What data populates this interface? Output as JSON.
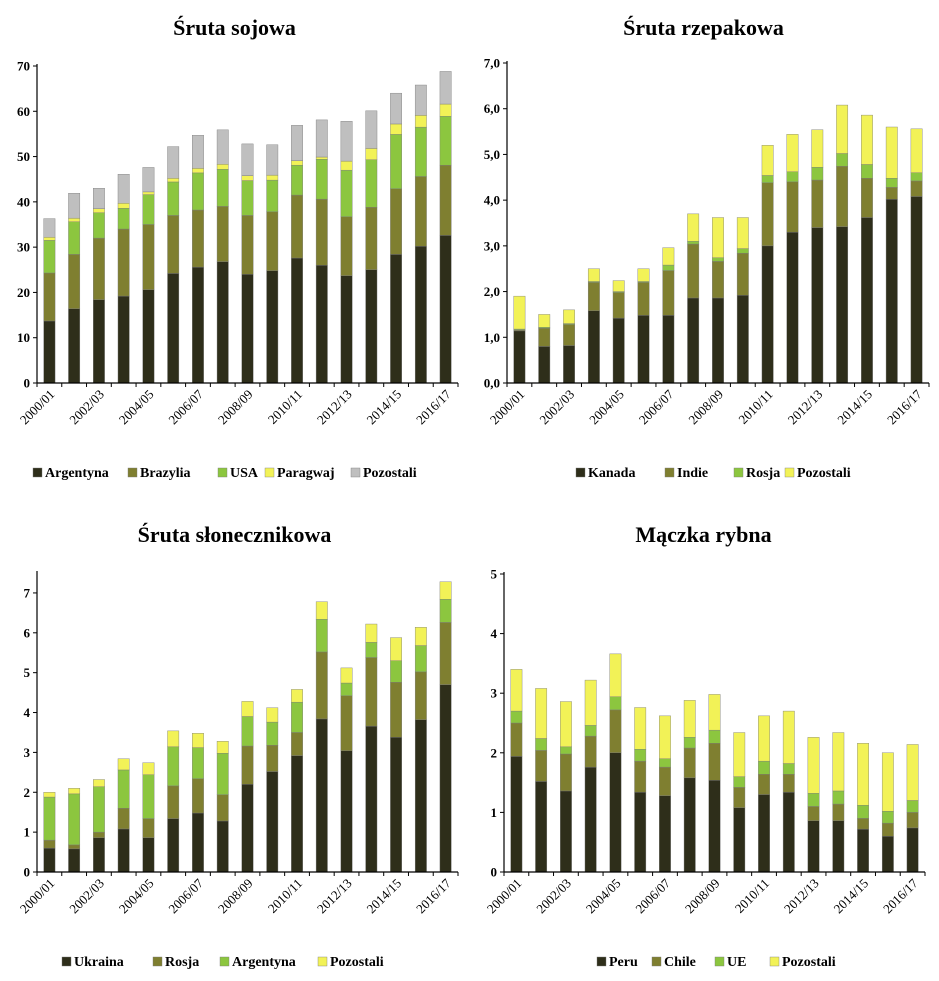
{
  "colors": {
    "c1": "#2e2e1a",
    "c2": "#7f7f30",
    "c3": "#8cc63f",
    "c4": "#f2f257",
    "c5": "#bfbfbf"
  },
  "chart_data": [
    {
      "type": "bar",
      "stacked": true,
      "title": "Śruta sojowa",
      "ylim": [
        0,
        70
      ],
      "yticks": [
        0,
        10,
        20,
        30,
        40,
        50,
        60,
        70
      ],
      "ytick_labels": [
        "0",
        "10",
        "20",
        "30",
        "40",
        "50",
        "60",
        "70"
      ],
      "categories": [
        "2000/01",
        "2001/02",
        "2002/03",
        "2003/04",
        "2004/05",
        "2005/06",
        "2006/07",
        "2007/08",
        "2008/09",
        "2009/10",
        "2010/11",
        "2011/12",
        "2012/13",
        "2013/14",
        "2014/15",
        "2015/16",
        "2016/17"
      ],
      "xtick_labels": [
        "2000/01",
        "2002/03",
        "2004/05",
        "2006/07",
        "2008/09",
        "2010/11",
        "2012/13",
        "2014/15",
        "2016/17"
      ],
      "legend_position": "bottom",
      "series": [
        {
          "name": "Argentyna",
          "color_key": "c1",
          "values": [
            13.7,
            16.4,
            18.4,
            19.2,
            20.6,
            24.2,
            25.6,
            26.8,
            24.0,
            24.8,
            27.6,
            26.0,
            23.7,
            25.0,
            28.4,
            30.2,
            32.6
          ]
        },
        {
          "name": "Brazylia",
          "color_key": "c2",
          "values": [
            10.6,
            12.0,
            13.6,
            14.8,
            14.4,
            12.8,
            12.6,
            12.2,
            13.0,
            13.0,
            13.9,
            14.6,
            13.0,
            13.8,
            14.5,
            15.4,
            15.5
          ]
        },
        {
          "name": "USA",
          "color_key": "c3",
          "values": [
            7.2,
            7.2,
            5.6,
            4.6,
            6.6,
            7.4,
            8.2,
            8.2,
            7.7,
            7.0,
            6.6,
            8.8,
            10.3,
            10.5,
            12.0,
            10.9,
            10.8
          ]
        },
        {
          "name": "Paragwaj",
          "color_key": "c4",
          "values": [
            0.7,
            0.8,
            0.9,
            1.1,
            0.6,
            0.8,
            1.0,
            1.1,
            1.1,
            1.1,
            1.0,
            0.5,
            2.0,
            2.5,
            2.3,
            2.6,
            2.7
          ]
        },
        {
          "name": "Pozostali",
          "color_key": "c5",
          "values": [
            4.1,
            5.5,
            4.5,
            6.4,
            5.4,
            7.0,
            7.3,
            7.6,
            7.0,
            6.7,
            7.8,
            8.2,
            8.8,
            8.3,
            6.8,
            6.7,
            7.2
          ]
        }
      ]
    },
    {
      "type": "bar",
      "stacked": true,
      "title": "Śruta rzepakowa",
      "ylim": [
        0,
        7
      ],
      "yticks": [
        0,
        1,
        2,
        3,
        4,
        5,
        6,
        7
      ],
      "ytick_labels": [
        "0,0",
        "1,0",
        "2,0",
        "3,0",
        "4,0",
        "5,0",
        "6,0",
        "7,0"
      ],
      "categories": [
        "2000/01",
        "2001/02",
        "2002/03",
        "2003/04",
        "2004/05",
        "2005/06",
        "2006/07",
        "2007/08",
        "2008/09",
        "2009/10",
        "2010/11",
        "2011/12",
        "2012/13",
        "2013/14",
        "2014/15",
        "2015/16",
        "2016/17"
      ],
      "xtick_labels": [
        "2000/01",
        "2002/03",
        "2004/05",
        "2006/07",
        "2008/09",
        "2010/11",
        "2012/13",
        "2014/15",
        "2016/17"
      ],
      "legend_position": "bottom",
      "series": [
        {
          "name": "Kanada",
          "color_key": "c1",
          "values": [
            1.14,
            0.8,
            0.82,
            1.58,
            1.42,
            1.48,
            1.48,
            1.86,
            1.86,
            1.92,
            3.0,
            3.3,
            3.4,
            3.42,
            3.62,
            4.02,
            4.08
          ]
        },
        {
          "name": "Indie",
          "color_key": "c2",
          "values": [
            0.02,
            0.4,
            0.46,
            0.62,
            0.56,
            0.72,
            0.98,
            1.18,
            0.8,
            0.92,
            1.38,
            1.1,
            1.04,
            1.32,
            0.86,
            0.26,
            0.34
          ]
        },
        {
          "name": "Rosja",
          "color_key": "c3",
          "values": [
            0.02,
            0.02,
            0.02,
            0.02,
            0.02,
            0.02,
            0.12,
            0.06,
            0.08,
            0.1,
            0.16,
            0.22,
            0.28,
            0.28,
            0.3,
            0.2,
            0.18
          ]
        },
        {
          "name": "Pozostali",
          "color_key": "c4",
          "values": [
            0.72,
            0.28,
            0.3,
            0.28,
            0.24,
            0.28,
            0.38,
            0.6,
            0.88,
            0.68,
            0.66,
            0.82,
            0.82,
            1.06,
            1.08,
            1.12,
            0.96
          ]
        }
      ]
    },
    {
      "type": "bar",
      "stacked": true,
      "title": "Śruta słonecznikowa",
      "ylim": [
        0,
        7.5
      ],
      "yticks": [
        0,
        1,
        2,
        3,
        4,
        5,
        6,
        7
      ],
      "ytick_labels": [
        "0",
        "1",
        "2",
        "3",
        "4",
        "5",
        "6",
        "7"
      ],
      "categories": [
        "2000/01",
        "2001/02",
        "2002/03",
        "2003/04",
        "2004/05",
        "2005/06",
        "2006/07",
        "2007/08",
        "2008/09",
        "2009/10",
        "2010/11",
        "2011/12",
        "2012/13",
        "2013/14",
        "2014/15",
        "2015/16",
        "2016/17"
      ],
      "xtick_labels": [
        "2000/01",
        "2002/03",
        "2004/05",
        "2006/07",
        "2008/09",
        "2010/11",
        "2012/13",
        "2014/15",
        "2016/17"
      ],
      "legend_position": "bottom",
      "series": [
        {
          "name": "Ukraina",
          "color_key": "c1",
          "values": [
            0.6,
            0.58,
            0.86,
            1.08,
            0.86,
            1.34,
            1.48,
            1.28,
            2.2,
            2.52,
            2.92,
            3.84,
            3.04,
            3.66,
            3.38,
            3.82,
            4.7
          ]
        },
        {
          "name": "Rosja",
          "color_key": "c2",
          "values": [
            0.2,
            0.1,
            0.14,
            0.52,
            0.48,
            0.82,
            0.86,
            0.66,
            0.96,
            0.66,
            0.58,
            1.68,
            1.38,
            1.72,
            1.38,
            1.2,
            1.56
          ]
        },
        {
          "name": "Argentyna",
          "color_key": "c3",
          "values": [
            1.08,
            1.28,
            1.14,
            0.96,
            1.1,
            0.98,
            0.78,
            1.04,
            0.74,
            0.58,
            0.76,
            0.82,
            0.32,
            0.38,
            0.54,
            0.66,
            0.58
          ]
        },
        {
          "name": "Pozostali",
          "color_key": "c4",
          "values": [
            0.12,
            0.14,
            0.18,
            0.28,
            0.3,
            0.4,
            0.36,
            0.3,
            0.38,
            0.36,
            0.32,
            0.44,
            0.38,
            0.46,
            0.58,
            0.46,
            0.44
          ]
        }
      ]
    },
    {
      "type": "bar",
      "stacked": true,
      "title": "Mączka rybna",
      "ylim": [
        0,
        5
      ],
      "yticks": [
        0,
        1,
        2,
        3,
        4,
        5
      ],
      "ytick_labels": [
        "0",
        "1",
        "2",
        "3",
        "4",
        "5"
      ],
      "categories": [
        "2000/01",
        "2001/02",
        "2002/03",
        "2003/04",
        "2004/05",
        "2005/06",
        "2006/07",
        "2007/08",
        "2008/09",
        "2009/10",
        "2010/11",
        "2011/12",
        "2012/13",
        "2013/14",
        "2014/15",
        "2015/16",
        "2016/17"
      ],
      "xtick_labels": [
        "2000/01",
        "2002/03",
        "2004/05",
        "2006/07",
        "2008/09",
        "2010/11",
        "2012/13",
        "2014/15",
        "2016/17"
      ],
      "legend_position": "bottom",
      "series": [
        {
          "name": "Peru",
          "color_key": "c1",
          "values": [
            1.94,
            1.52,
            1.36,
            1.76,
            2.0,
            1.34,
            1.28,
            1.58,
            1.54,
            1.08,
            1.3,
            1.34,
            0.86,
            0.86,
            0.72,
            0.6,
            0.74
          ]
        },
        {
          "name": "Chile",
          "color_key": "c2",
          "values": [
            0.56,
            0.52,
            0.62,
            0.52,
            0.72,
            0.52,
            0.48,
            0.5,
            0.62,
            0.34,
            0.34,
            0.3,
            0.24,
            0.28,
            0.18,
            0.22,
            0.26
          ]
        },
        {
          "name": "UE",
          "color_key": "c3",
          "values": [
            0.2,
            0.2,
            0.12,
            0.18,
            0.22,
            0.2,
            0.14,
            0.18,
            0.22,
            0.18,
            0.22,
            0.18,
            0.22,
            0.22,
            0.22,
            0.2,
            0.2
          ]
        },
        {
          "name": "Pozostali",
          "color_key": "c4",
          "values": [
            0.7,
            0.84,
            0.76,
            0.76,
            0.72,
            0.7,
            0.72,
            0.62,
            0.6,
            0.74,
            0.76,
            0.88,
            0.94,
            0.98,
            1.04,
            0.98,
            0.94
          ]
        }
      ]
    }
  ]
}
